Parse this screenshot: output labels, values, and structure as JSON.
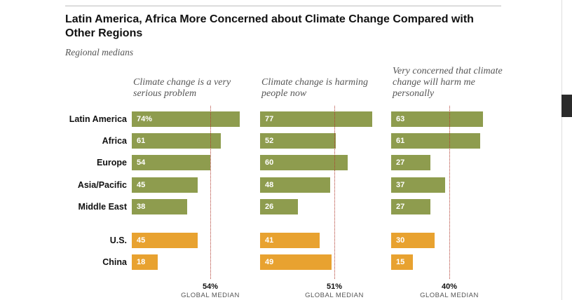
{
  "title": "Latin America, Africa More Concerned about Climate Change Compared with Other Regions",
  "subtitle": "Regional medians",
  "chart_data": {
    "type": "bar",
    "orientation": "horizontal",
    "categories": [
      "Latin America",
      "Africa",
      "Europe",
      "Asia/Pacific",
      "Middle East",
      "U.S.",
      "China"
    ],
    "panels": [
      {
        "header": "Climate change is a very serious problem",
        "values": [
          74,
          61,
          54,
          45,
          38,
          45,
          18
        ],
        "value_labels": [
          "74%",
          "61",
          "54",
          "45",
          "38",
          "45",
          "18"
        ],
        "median_value": 54,
        "median_label": "54%",
        "median_caption": "GLOBAL MEDIAN"
      },
      {
        "header": "Climate change is harming people now",
        "values": [
          77,
          52,
          60,
          48,
          26,
          41,
          49
        ],
        "value_labels": [
          "77",
          "52",
          "60",
          "48",
          "26",
          "41",
          "49"
        ],
        "median_value": 51,
        "median_label": "51%",
        "median_caption": "GLOBAL MEDIAN"
      },
      {
        "header": "Very concerned that climate change will harm me personally",
        "values": [
          63,
          61,
          27,
          37,
          27,
          30,
          15
        ],
        "value_labels": [
          "63",
          "61",
          "27",
          "37",
          "27",
          "30",
          "15"
        ],
        "median_value": 40,
        "median_label": "40%",
        "median_caption": "GLOBAL MEDIAN"
      }
    ],
    "colors": {
      "region": "#8e9c4e",
      "country": "#e8a230",
      "median_line": "#b03a2e"
    }
  }
}
